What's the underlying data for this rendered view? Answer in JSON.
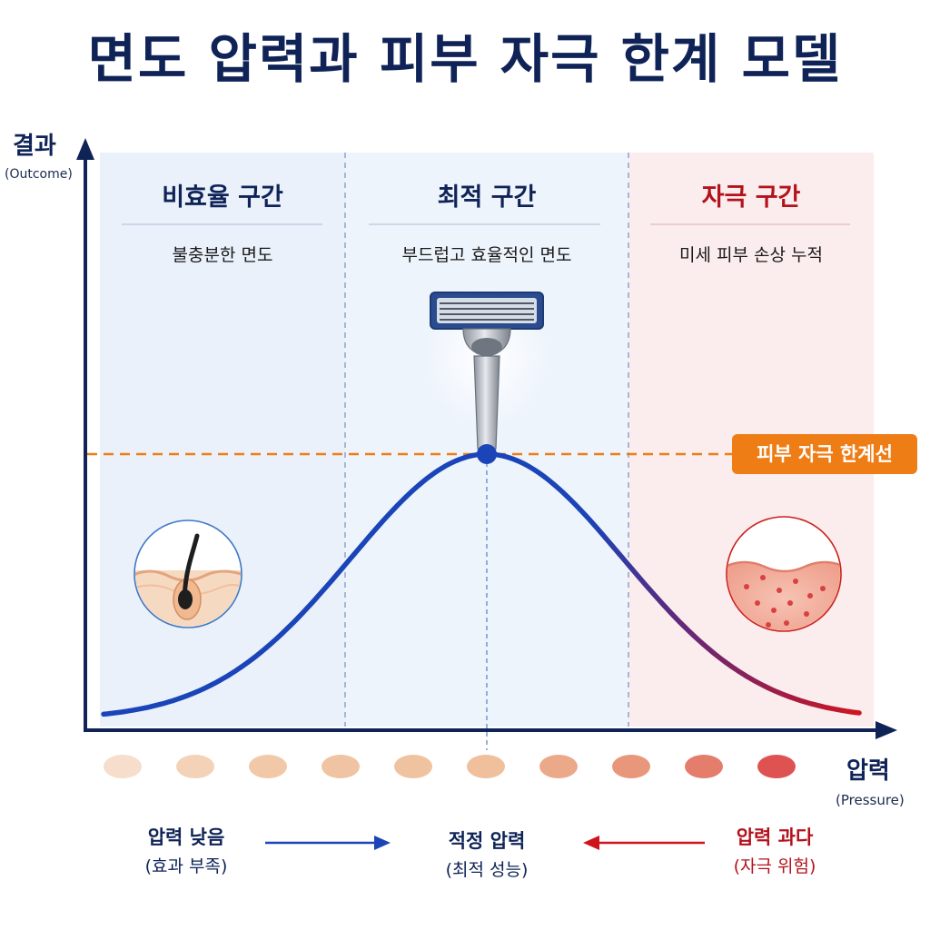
{
  "title": "면도 압력과 피부 자극 한계 모델",
  "axes": {
    "y_label": "결과",
    "y_sub": "(Outcome)",
    "x_label": "압력",
    "x_sub": "(Pressure)"
  },
  "zones": [
    {
      "title": "비효율 구간",
      "desc": "불충분한 면도"
    },
    {
      "title": "최적 구간",
      "desc": "부드럽고 효율적인 면도"
    },
    {
      "title": "자극 구간",
      "desc": "미세 피부 손상 누적"
    }
  ],
  "threshold_label": "피부 자극 한계선",
  "bottom": {
    "left": {
      "main": "압력 낮음",
      "sub": "(효과 부족)"
    },
    "center": {
      "main": "적정 압력",
      "sub": "(최적 성능)"
    },
    "right": {
      "main": "압력 과다",
      "sub": "(자극 위험)"
    }
  },
  "colors": {
    "navy": "#0f2357",
    "curve_blue": "#1a44b8",
    "curve_red": "#d0141e",
    "threshold_orange": "#ef7d16",
    "zone_left_bg": "#eaf1fb",
    "zone_mid_bg": "#eef4fc",
    "zone_right_bg": "#fbeced",
    "zone_red_text": "#b3121c"
  },
  "pressure_dots": [
    "#f6ddcc",
    "#f3d2b8",
    "#f2c9a8",
    "#f0c4a2",
    "#f0c3a0",
    "#f0bf9c",
    "#eba98a",
    "#e8977a",
    "#e57d6c",
    "#df5252"
  ],
  "icons": {
    "razor": "razor-icon",
    "hair_follicle": "hair-follicle-icon",
    "irritated_skin": "irritated-skin-icon"
  }
}
